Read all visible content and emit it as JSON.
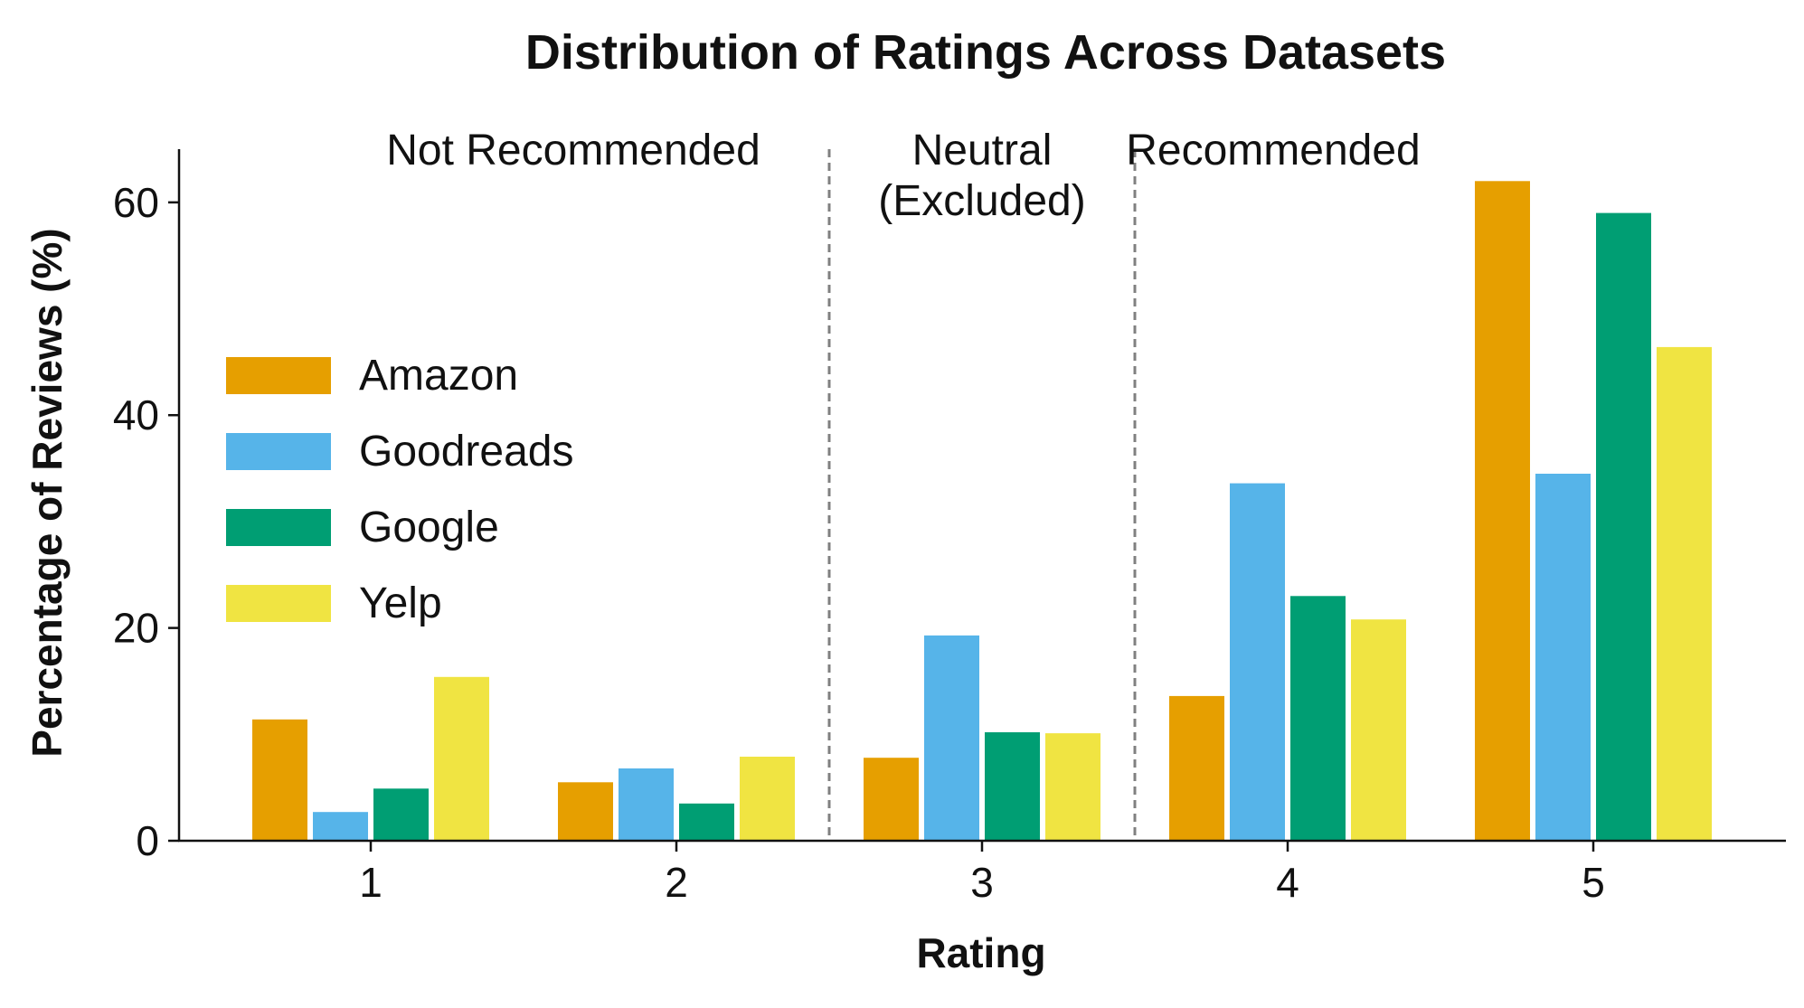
{
  "chart_data": {
    "type": "bar",
    "title": "Distribution of Ratings Across Datasets",
    "xlabel": "Rating",
    "ylabel": "Percentage of Reviews (%)",
    "categories": [
      "1",
      "2",
      "3",
      "4",
      "5"
    ],
    "ylim": [
      0,
      65
    ],
    "yticks": [
      0,
      20,
      40,
      60
    ],
    "grid": false,
    "legend_position": "center-left",
    "series": [
      {
        "name": "Amazon",
        "color": "#E69F00",
        "values": [
          11.4,
          5.5,
          7.8,
          13.6,
          62.0
        ]
      },
      {
        "name": "Goodreads",
        "color": "#56B4E9",
        "values": [
          2.7,
          6.8,
          19.3,
          33.6,
          34.5
        ]
      },
      {
        "name": "Google",
        "color": "#009E73",
        "values": [
          4.9,
          3.5,
          10.2,
          23.0,
          59.0
        ]
      },
      {
        "name": "Yelp",
        "color": "#F0E442",
        "values": [
          15.4,
          7.9,
          10.1,
          20.8,
          46.4
        ]
      }
    ],
    "dividers_between": [
      [
        2,
        3
      ],
      [
        3,
        4
      ]
    ],
    "regions": [
      {
        "lines": [
          "Not Recommended"
        ],
        "span": [
          1,
          2
        ]
      },
      {
        "lines": [
          "Neutral",
          "(Excluded)"
        ],
        "span": [
          3,
          3
        ]
      },
      {
        "lines": [
          "Recommended"
        ],
        "span": [
          4,
          5
        ]
      }
    ]
  }
}
